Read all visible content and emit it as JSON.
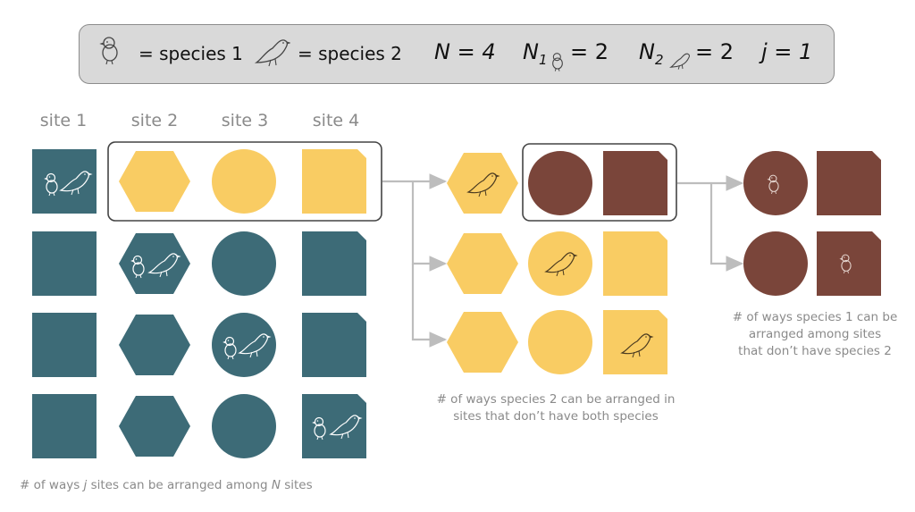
{
  "legend": {
    "species1_label": "= species 1",
    "species2_label": "= species 2",
    "n_text": "N = 4",
    "n1_prefix": "N",
    "n1_sub": "1",
    "n1_value": "= 2",
    "n2_prefix": "N",
    "n2_sub": "2",
    "n2_value": "= 2",
    "j_text": "j = 1"
  },
  "site_headers": [
    "site 1",
    "site 2",
    "site 3",
    "site 4"
  ],
  "captions": {
    "left_pre": "# of ways ",
    "left_j": "j",
    "left_mid": " sites can be arranged among ",
    "left_n": "N",
    "left_post": " sites",
    "middle_line1": "# of ways species 2 can be arranged in",
    "middle_line2": "sites that don’t have both species",
    "right_line1": "# of ways species 1 can be",
    "right_line2": "arranged among sites",
    "right_line3": "that don’t have species 2"
  },
  "colors": {
    "teal": "#3d6b77",
    "yellow": "#f9cc63",
    "brown": "#7a453a",
    "legend_bg": "#d9d9d9",
    "arrow": "#bdbdbd"
  },
  "icons": {
    "species1": "chick-icon",
    "species2": "bird-icon"
  }
}
